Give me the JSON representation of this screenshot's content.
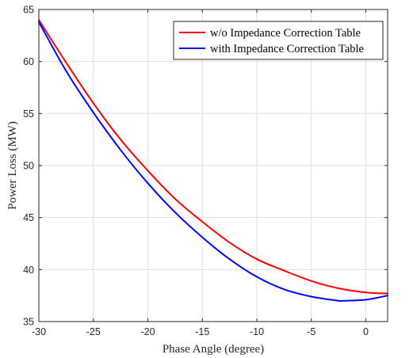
{
  "chart_data": {
    "type": "line",
    "xlabel": "Phase Angle (degree)",
    "ylabel": "Power Loss (MW)",
    "xlim": [
      -30,
      2
    ],
    "ylim": [
      35,
      65
    ],
    "xticks": [
      -30,
      -25,
      -20,
      -15,
      -10,
      -5,
      0
    ],
    "yticks": [
      35,
      40,
      45,
      50,
      55,
      60,
      65
    ],
    "grid": true,
    "legend_position": "top-right",
    "series": [
      {
        "name": "w/o Impedance Correction Table",
        "color": "#ff0000",
        "x": [
          -30,
          -27.5,
          -25,
          -22.5,
          -20,
          -17.5,
          -15,
          -12.5,
          -10,
          -7.5,
          -5,
          -2.5,
          0,
          2
        ],
        "y": [
          64.0,
          59.9,
          56.0,
          52.5,
          49.5,
          46.8,
          44.6,
          42.6,
          41.0,
          39.9,
          38.9,
          38.2,
          37.8,
          37.7
        ]
      },
      {
        "name": "with Impedance Correction Table",
        "color": "#0000ff",
        "x": [
          -30,
          -27.5,
          -25,
          -22.5,
          -20,
          -17.5,
          -15,
          -12.5,
          -10,
          -7.5,
          -5,
          -2.5,
          -2,
          0,
          2
        ],
        "y": [
          63.8,
          59.1,
          55.1,
          51.5,
          48.3,
          45.5,
          43.1,
          41.0,
          39.3,
          38.1,
          37.4,
          37.0,
          37.0,
          37.1,
          37.5
        ]
      }
    ]
  }
}
